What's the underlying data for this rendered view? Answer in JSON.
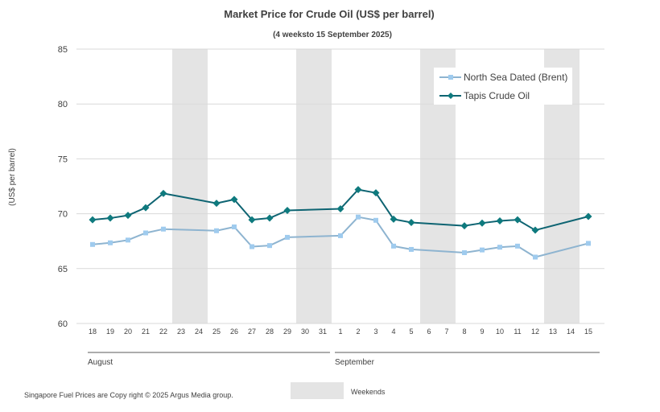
{
  "chart_data": {
    "type": "line",
    "title": "Market Price for Crude  Oil (US$ per barrel)",
    "subtitle": "(4 weeksto 15 September 2025)",
    "ylabel": "(US$ per barrel)",
    "ylim": [
      60,
      85
    ],
    "yticks": [
      "60",
      "65",
      "70",
      "75",
      "80",
      "85"
    ],
    "grid": true,
    "legend_position": "top-right",
    "categories": [
      "18",
      "19",
      "20",
      "21",
      "22",
      "23",
      "24",
      "25",
      "26",
      "27",
      "28",
      "29",
      "30",
      "31",
      "1",
      "2",
      "3",
      "4",
      "5",
      "6",
      "7",
      "8",
      "9",
      "10",
      "11",
      "12",
      "13",
      "14",
      "15"
    ],
    "month_groups": [
      {
        "label": "August",
        "start": 0,
        "end": 13
      },
      {
        "label": "September",
        "start": 14,
        "end": 28
      }
    ],
    "weekend_ranges": [
      [
        5,
        6
      ],
      [
        12,
        13
      ],
      [
        19,
        20
      ],
      [
        26,
        27
      ]
    ],
    "series": [
      {
        "name": "North Sea Dated (Brent)",
        "color": "#8eb4d0",
        "marker_color": "#9fcbee",
        "marker": "square",
        "values": [
          67.2,
          67.35,
          67.6,
          68.25,
          68.6,
          null,
          null,
          68.45,
          68.8,
          67.0,
          67.1,
          67.85,
          null,
          null,
          68.0,
          69.7,
          69.4,
          67.05,
          66.75,
          null,
          null,
          66.45,
          66.7,
          66.95,
          67.05,
          66.05,
          null,
          null,
          67.3
        ]
      },
      {
        "name": "Tapis Crude Oil",
        "color": "#0e6472",
        "marker_color": "#0e7a7e",
        "marker": "diamond",
        "values": [
          69.45,
          69.6,
          69.85,
          70.55,
          71.85,
          null,
          null,
          70.95,
          71.3,
          69.45,
          69.6,
          70.3,
          null,
          null,
          70.45,
          72.2,
          71.9,
          69.5,
          69.2,
          null,
          null,
          68.9,
          69.15,
          69.35,
          69.45,
          68.5,
          null,
          null,
          69.75
        ]
      }
    ]
  },
  "footer": {
    "copyright": "Singapore  Fuel Prices are  Copy right © 2025 Argus Media  group.",
    "weekend_legend_label": "Weekends",
    "weekend_color": "#e4e4e4"
  }
}
